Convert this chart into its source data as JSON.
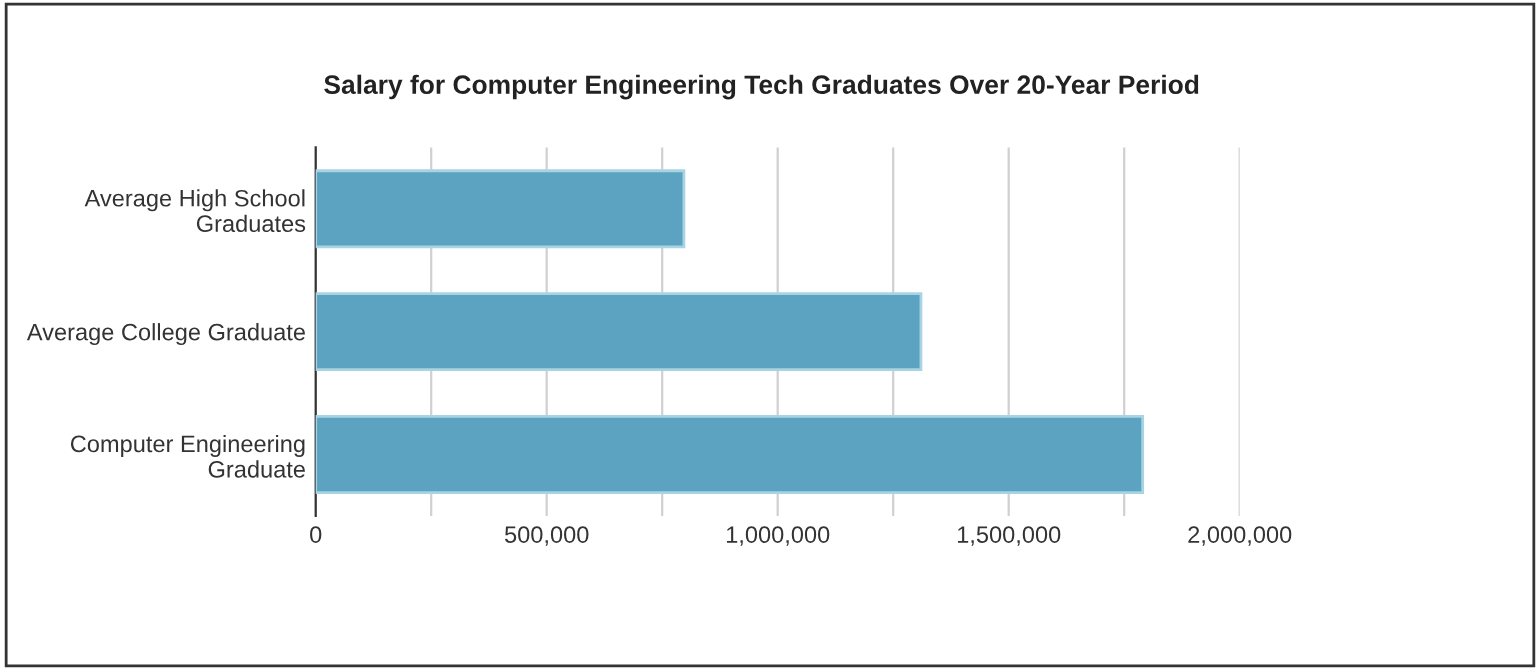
{
  "chart_data": {
    "type": "bar",
    "orientation": "horizontal",
    "title": "Salary for Computer Engineering Tech Graduates Over 20-Year Period",
    "categories": [
      "Average High School\nGraduates",
      "Average College Graduate",
      "Computer Engineering\nGraduate"
    ],
    "values": [
      797000,
      1310000,
      1790000
    ],
    "color": "#5ba3c0",
    "xlim": [
      0,
      2000000
    ],
    "xticks": [
      0,
      {
        "value": 250000,
        "label": null
      },
      {
        "value": 500000,
        "label": "500,000"
      },
      {
        "value": 750000,
        "label": null
      },
      {
        "value": 1000000,
        "label": "1,000,000"
      },
      {
        "value": 1250000,
        "label": null
      },
      {
        "value": 1500000,
        "label": "1,500,000"
      },
      {
        "value": 1750000,
        "label": null
      },
      {
        "value": 2000000,
        "label": "2,000,000"
      }
    ],
    "grid": "x",
    "legend": false
  }
}
